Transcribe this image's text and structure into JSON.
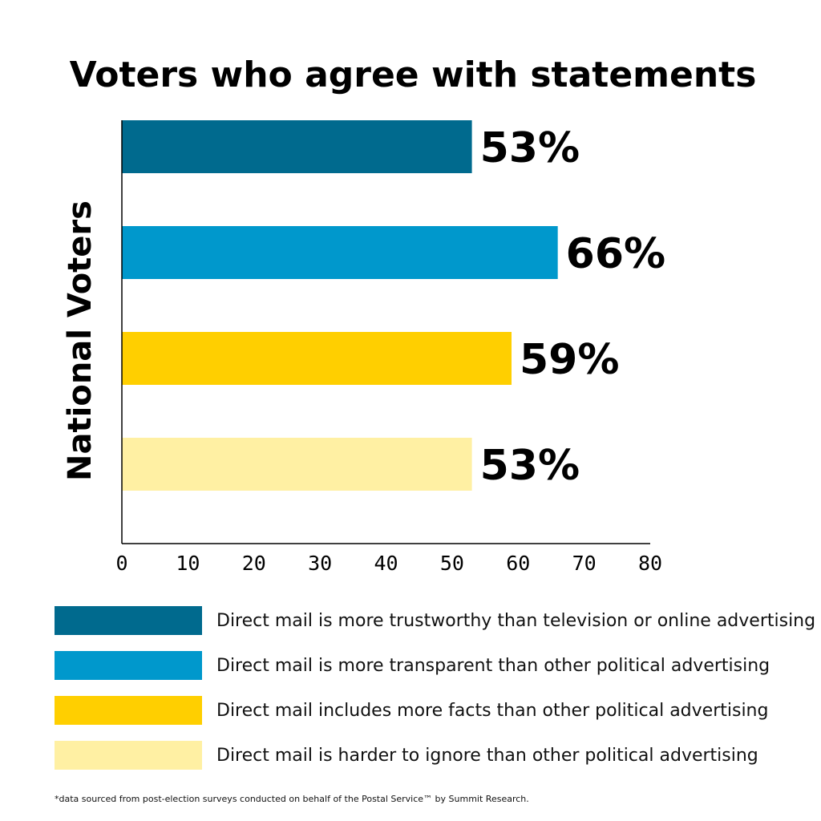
{
  "chart_data": {
    "type": "bar",
    "orientation": "horizontal",
    "title": "Voters who agree with statements",
    "ylabel": "National Voters",
    "xlabel": "",
    "xlim": [
      0,
      80
    ],
    "xticks": [
      "0",
      "10",
      "20",
      "30",
      "40",
      "50",
      "60",
      "70",
      "80"
    ],
    "categories": [
      "Direct mail is more trustworthy than television or online advertising",
      "Direct mail is more transparent than other political advertising",
      "Direct mail includes more facts than other political advertising",
      "Direct mail is harder to ignore than other political advertising"
    ],
    "values": [
      53,
      66,
      59,
      53
    ],
    "data_labels": [
      "53%",
      "66%",
      "59%",
      "53%"
    ],
    "colors": [
      "#006a8e",
      "#0098cc",
      "#ffcf00",
      "#fff0a3"
    ],
    "grid": false,
    "legend_position": "bottom"
  },
  "footnote": "*data sourced from post-election surveys conducted on behalf of the Postal Service™ by Summit Research."
}
